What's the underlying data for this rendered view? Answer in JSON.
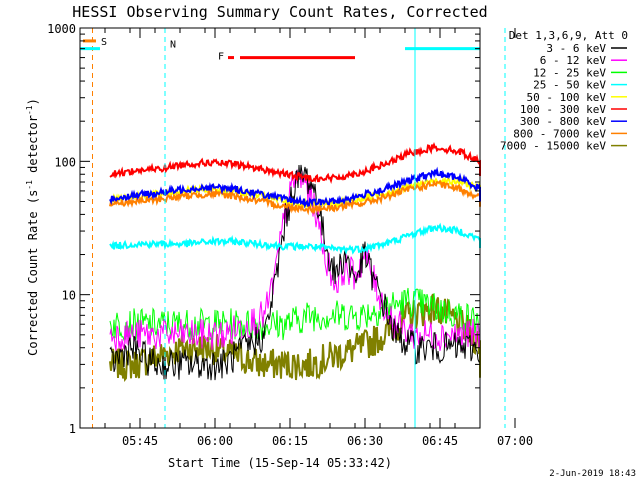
{
  "chart_data": {
    "type": "line",
    "title": "HESSI Observing Summary Count Rates, Corrected",
    "xlabel": "Start Time (15-Sep-14 05:33:42)",
    "ylabel_main": "Corrected Count Rate (s",
    "ylabel_sup1": "-1",
    "ylabel_mid": " detector",
    "ylabel_sup2": "-1",
    "ylabel_end": ")",
    "y_scale": "log",
    "ylim": [
      1,
      1000
    ],
    "y_ticks": [
      "1",
      "10",
      "100",
      "1000"
    ],
    "xlim_minutes_after_0533": [
      0,
      83
    ],
    "x_ticks": [
      "05:45",
      "06:00",
      "06:15",
      "06:30",
      "06:45",
      "07:00"
    ],
    "x_tick_minutes": [
      12,
      27,
      42,
      57,
      72,
      87
    ],
    "grid": false,
    "legend_title": "Det 1,3,6,9, Att 0",
    "legend_position": "right",
    "series": [
      {
        "name": "3 - 6 keV",
        "color": "#000000",
        "x": [
          3,
          7,
          12,
          16,
          20,
          26,
          30,
          34,
          36,
          38,
          40,
          42,
          44,
          46,
          48,
          50,
          52,
          54,
          56,
          58,
          60,
          64,
          68,
          72,
          76,
          80,
          83
        ],
        "y": [
          3,
          4,
          3,
          3,
          3,
          3,
          4,
          5,
          12,
          35,
          70,
          80,
          60,
          25,
          14,
          20,
          13,
          20,
          12,
          8,
          5,
          4,
          4,
          4,
          4,
          3,
          3
        ]
      },
      {
        "name": "6 - 12 keV",
        "color": "#ff00ff",
        "x": [
          3,
          7,
          12,
          16,
          20,
          26,
          30,
          34,
          36,
          38,
          40,
          42,
          44,
          46,
          48,
          50,
          52,
          54,
          56,
          58,
          60,
          64,
          68,
          72,
          76,
          80,
          83
        ],
        "y": [
          5,
          5,
          5,
          5,
          5,
          5,
          6,
          7,
          14,
          40,
          75,
          70,
          45,
          20,
          12,
          16,
          14,
          20,
          12,
          8,
          6,
          5,
          5,
          5,
          5,
          5,
          5
        ]
      },
      {
        "name": "12 - 25 keV",
        "color": "#00ff00",
        "x": [
          3,
          8,
          13,
          18,
          23,
          28,
          33,
          38,
          43,
          48,
          53,
          58,
          63,
          68,
          73,
          78,
          83
        ],
        "y": [
          6,
          6,
          6,
          6,
          6,
          6,
          6,
          6,
          7,
          7,
          7,
          8,
          9,
          8,
          7,
          6,
          6
        ]
      },
      {
        "name": "25 - 50 keV",
        "color": "#00ffff",
        "x": [
          3,
          8,
          13,
          18,
          23,
          28,
          33,
          38,
          43,
          48,
          53,
          58,
          63,
          68,
          73,
          78,
          83
        ],
        "y": [
          23,
          24,
          24,
          24,
          25,
          25,
          24,
          23,
          23,
          22,
          22,
          24,
          28,
          32,
          30,
          25,
          23
        ]
      },
      {
        "name": "50 - 100 keV",
        "color": "#ffff00",
        "x": [
          3,
          8,
          13,
          18,
          23,
          28,
          33,
          38,
          43,
          48,
          53,
          58,
          63,
          68,
          73,
          78,
          83
        ],
        "y": [
          52,
          55,
          57,
          60,
          62,
          60,
          55,
          50,
          47,
          48,
          52,
          58,
          65,
          72,
          70,
          62,
          56
        ]
      },
      {
        "name": "100 - 300 keV",
        "color": "#ff0000",
        "x": [
          3,
          8,
          13,
          18,
          23,
          28,
          33,
          38,
          43,
          48,
          53,
          58,
          63,
          68,
          73,
          78,
          83
        ],
        "y": [
          80,
          85,
          88,
          95,
          98,
          95,
          88,
          80,
          75,
          75,
          82,
          95,
          115,
          128,
          118,
          95,
          80
        ]
      },
      {
        "name": "300 - 800 keV",
        "color": "#0000ff",
        "x": [
          3,
          8,
          13,
          18,
          23,
          28,
          33,
          38,
          43,
          48,
          53,
          58,
          63,
          68,
          73,
          78,
          83
        ],
        "y": [
          52,
          56,
          58,
          62,
          64,
          62,
          57,
          52,
          49,
          50,
          55,
          62,
          72,
          82,
          75,
          60,
          52
        ]
      },
      {
        "name": "800 - 7000 keV",
        "color": "#ff8000",
        "x": [
          3,
          8,
          13,
          18,
          23,
          28,
          33,
          38,
          43,
          48,
          53,
          58,
          63,
          68,
          73,
          78,
          83
        ],
        "y": [
          48,
          50,
          52,
          55,
          57,
          55,
          50,
          46,
          44,
          45,
          48,
          54,
          62,
          68,
          62,
          52,
          46
        ]
      },
      {
        "name": "7000 - 15000 keV",
        "color": "#808000",
        "x": [
          3,
          8,
          13,
          18,
          23,
          28,
          33,
          38,
          43,
          48,
          53,
          58,
          63,
          68,
          73,
          78,
          83
        ],
        "y": [
          3,
          3,
          3.5,
          4,
          4,
          3.5,
          3,
          3,
          3,
          3.5,
          4,
          5,
          7,
          8,
          6,
          4,
          3
        ]
      }
    ],
    "annotations": [
      {
        "text": "S",
        "color": "#ff8000"
      },
      {
        "text": "N",
        "color": "#00ffff"
      },
      {
        "text": "F",
        "color": "#ff0000"
      }
    ],
    "flag_color_s": "#ff8000",
    "flag_color_n": "#00ffff",
    "flag_color_f": "#ff0000",
    "flag_level_s": 800,
    "flag_level_n": 700,
    "flag_level_f": 600,
    "flag_segments_n_minutes": [
      [
        -3,
        1
      ],
      [
        62,
        83
      ]
    ],
    "flag_segment_f_minutes": [
      [
        29,
        52
      ]
    ],
    "dashed_lines_orange_minutes": [
      -0.5
    ],
    "dashed_lines_cyan_minutes": [
      14,
      64,
      82
    ],
    "solid_lines_cyan_minutes": [
      -3,
      64
    ],
    "footer_date": "2-Jun-2019 18:43"
  }
}
